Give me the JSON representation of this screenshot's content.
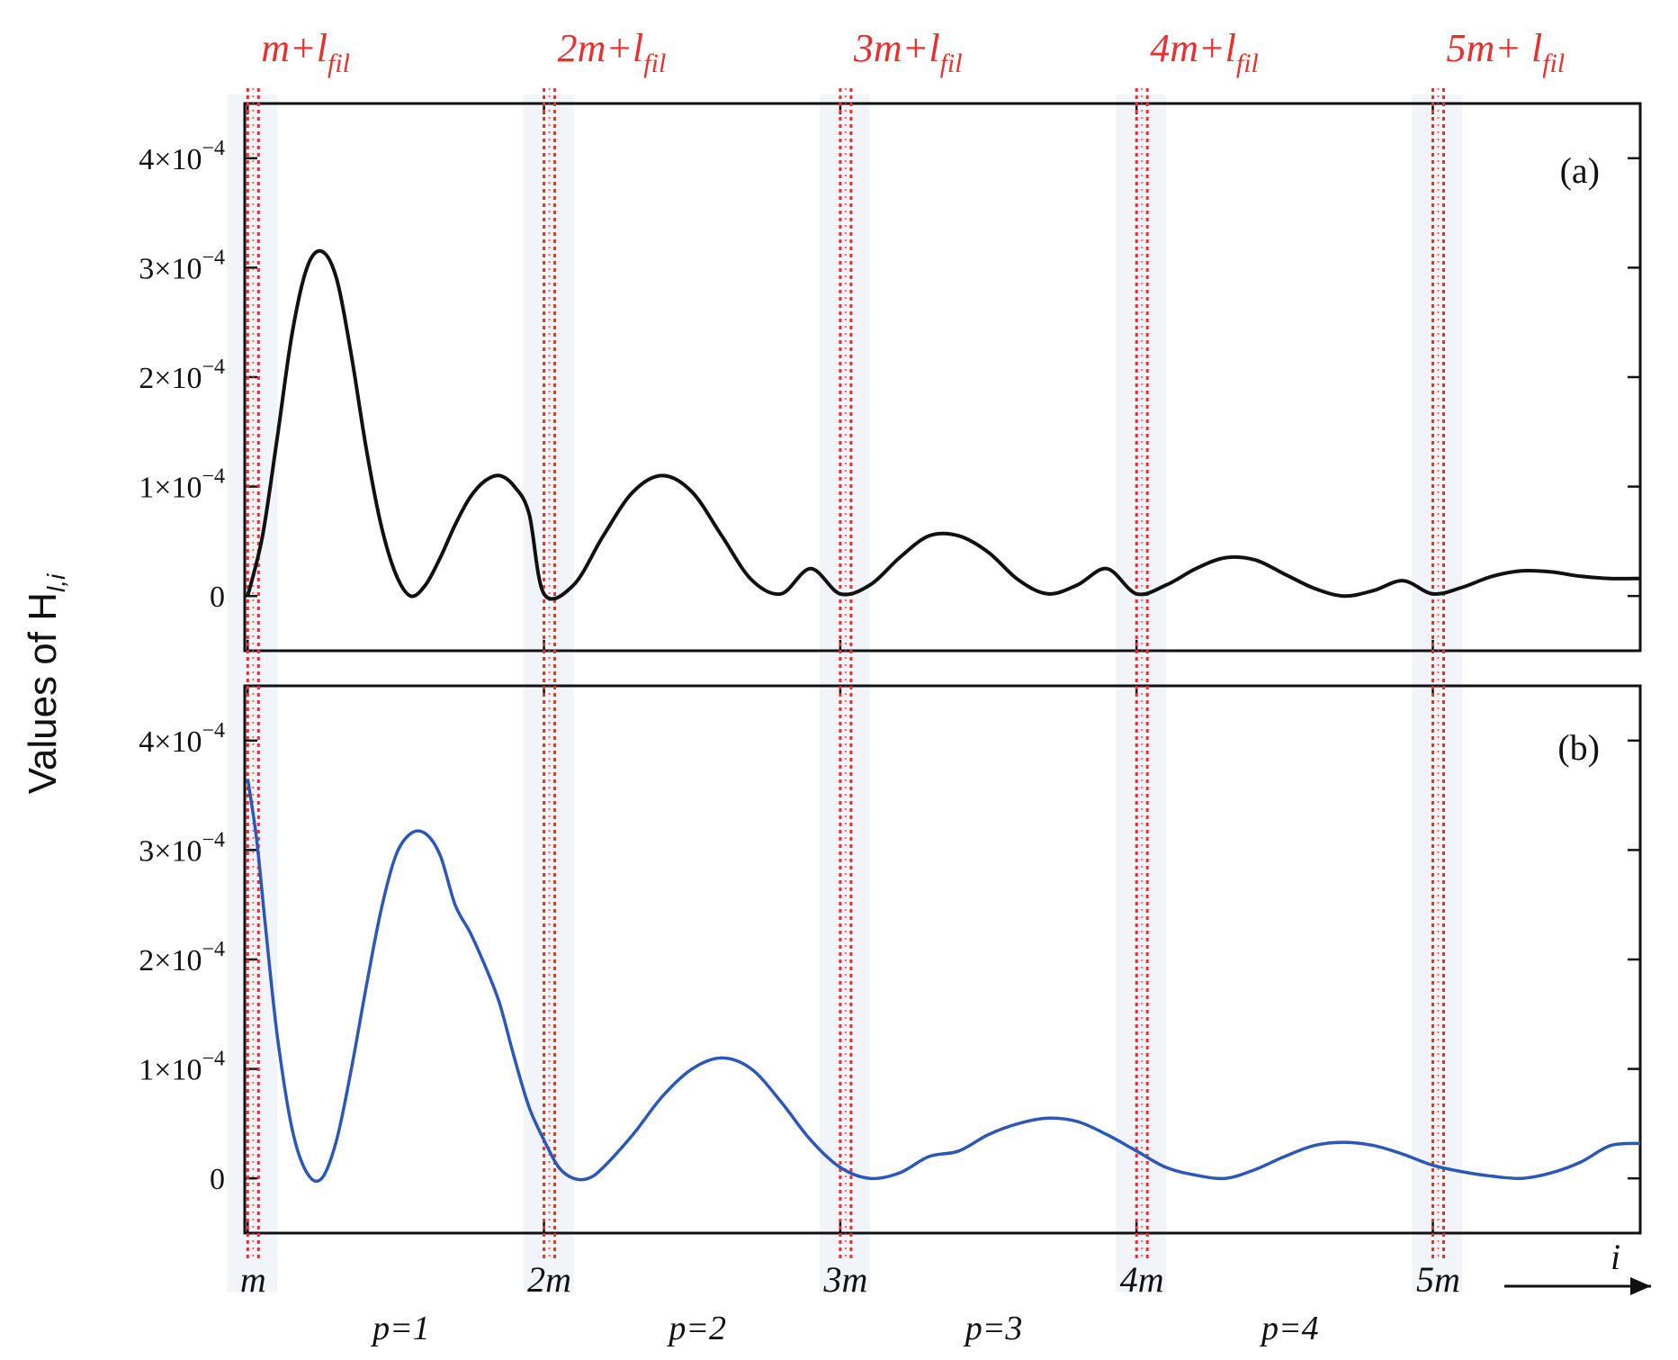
{
  "chart_data": [
    {
      "panel": "a",
      "type": "line",
      "tag": "(a)",
      "ylabel": "Values of  H",
      "ylabel_sub": "l,i",
      "ylim": [
        -0.5,
        4.5
      ],
      "yticks": [
        0,
        1,
        2,
        3,
        4
      ],
      "ytick_labels": [
        "0",
        "1×10",
        "2×10",
        "3×10",
        "4×10"
      ],
      "ytick_exponent": "−4",
      "scale": "×10^-4",
      "xlim": [
        0.99,
        5.7
      ],
      "color": "#111111",
      "series": [
        {
          "name": "H(l,i) panel a",
          "x": [
            1.0,
            1.05,
            1.1,
            1.15,
            1.2,
            1.25,
            1.3,
            1.35,
            1.4,
            1.45,
            1.5,
            1.55,
            1.6,
            1.65,
            1.7,
            1.75,
            1.8,
            1.85,
            1.9,
            1.95,
            2.0,
            2.1,
            2.2,
            2.3,
            2.4,
            2.5,
            2.6,
            2.7,
            2.8,
            2.9,
            3.0,
            3.1,
            3.2,
            3.3,
            3.4,
            3.5,
            3.6,
            3.7,
            3.8,
            3.9,
            4.0,
            4.1,
            4.2,
            4.3,
            4.4,
            4.5,
            4.6,
            4.7,
            4.8,
            4.9,
            5.0,
            5.1,
            5.2,
            5.3,
            5.4,
            5.5,
            5.6,
            5.7
          ],
          "y": [
            0.0,
            0.55,
            1.45,
            2.4,
            3.0,
            3.15,
            2.9,
            2.2,
            1.35,
            0.65,
            0.2,
            0.0,
            0.1,
            0.35,
            0.65,
            0.9,
            1.05,
            1.1,
            1.0,
            0.75,
            0.02,
            0.1,
            0.55,
            0.95,
            1.1,
            0.95,
            0.55,
            0.15,
            0.02,
            0.25,
            0.02,
            0.1,
            0.35,
            0.55,
            0.55,
            0.4,
            0.15,
            0.02,
            0.1,
            0.25,
            0.02,
            0.1,
            0.25,
            0.35,
            0.33,
            0.2,
            0.07,
            0.0,
            0.05,
            0.14,
            0.02,
            0.08,
            0.18,
            0.23,
            0.22,
            0.18,
            0.16,
            0.16
          ]
        }
      ]
    },
    {
      "panel": "b",
      "type": "line",
      "tag": "(b)",
      "ylim": [
        -0.5,
        4.5
      ],
      "yticks": [
        0,
        1,
        2,
        3,
        4
      ],
      "ytick_labels": [
        "0",
        "1×10",
        "2×10",
        "3×10",
        "4×10"
      ],
      "ytick_exponent": "−4",
      "scale": "×10^-4",
      "xlim": [
        0.99,
        5.7
      ],
      "xtick_values": [
        1,
        2,
        3,
        4,
        5
      ],
      "xticks": [
        "m",
        "2m",
        "3m",
        "4m",
        "5m"
      ],
      "xlabel": "i",
      "color": "#2a57b8",
      "series": [
        {
          "name": "H(l,i) panel b",
          "x": [
            1.0,
            1.03,
            1.06,
            1.1,
            1.15,
            1.2,
            1.25,
            1.3,
            1.35,
            1.4,
            1.45,
            1.5,
            1.55,
            1.6,
            1.65,
            1.7,
            1.75,
            1.8,
            1.85,
            1.9,
            1.95,
            2.0,
            2.05,
            2.1,
            2.15,
            2.2,
            2.3,
            2.4,
            2.5,
            2.6,
            2.7,
            2.8,
            2.9,
            3.0,
            3.1,
            3.2,
            3.3,
            3.4,
            3.5,
            3.6,
            3.7,
            3.8,
            3.9,
            4.0,
            4.1,
            4.2,
            4.3,
            4.4,
            4.5,
            4.6,
            4.7,
            4.8,
            4.9,
            5.0,
            5.1,
            5.2,
            5.3,
            5.4,
            5.5,
            5.6,
            5.7
          ],
          "y": [
            3.65,
            3.1,
            2.3,
            1.3,
            0.45,
            0.05,
            0.0,
            0.35,
            1.0,
            1.75,
            2.45,
            2.95,
            3.15,
            3.15,
            2.95,
            2.5,
            2.25,
            1.95,
            1.6,
            1.1,
            0.65,
            0.35,
            0.1,
            0.0,
            0.0,
            0.1,
            0.4,
            0.75,
            1.0,
            1.1,
            1.0,
            0.7,
            0.35,
            0.1,
            0.0,
            0.05,
            0.2,
            0.25,
            0.4,
            0.5,
            0.55,
            0.52,
            0.4,
            0.25,
            0.1,
            0.03,
            0.0,
            0.08,
            0.2,
            0.3,
            0.33,
            0.3,
            0.22,
            0.12,
            0.06,
            0.02,
            0.0,
            0.05,
            0.15,
            0.3,
            0.32
          ]
        }
      ]
    }
  ],
  "markers": {
    "top_labels": [
      {
        "text": "m+l",
        "sub": "fil"
      },
      {
        "text": "2m+l",
        "sub": "fil"
      },
      {
        "text": "3m+l",
        "sub": "fil"
      },
      {
        "text": "4m+l",
        "sub": "fil"
      },
      {
        "text": "5m+ l",
        "sub": "fil"
      }
    ],
    "line_x": [
      1,
      2,
      3,
      4,
      5
    ],
    "line_color": "#e8312f"
  },
  "period_labels": [
    "p=1",
    "p=2",
    "p=3",
    "p=4"
  ]
}
